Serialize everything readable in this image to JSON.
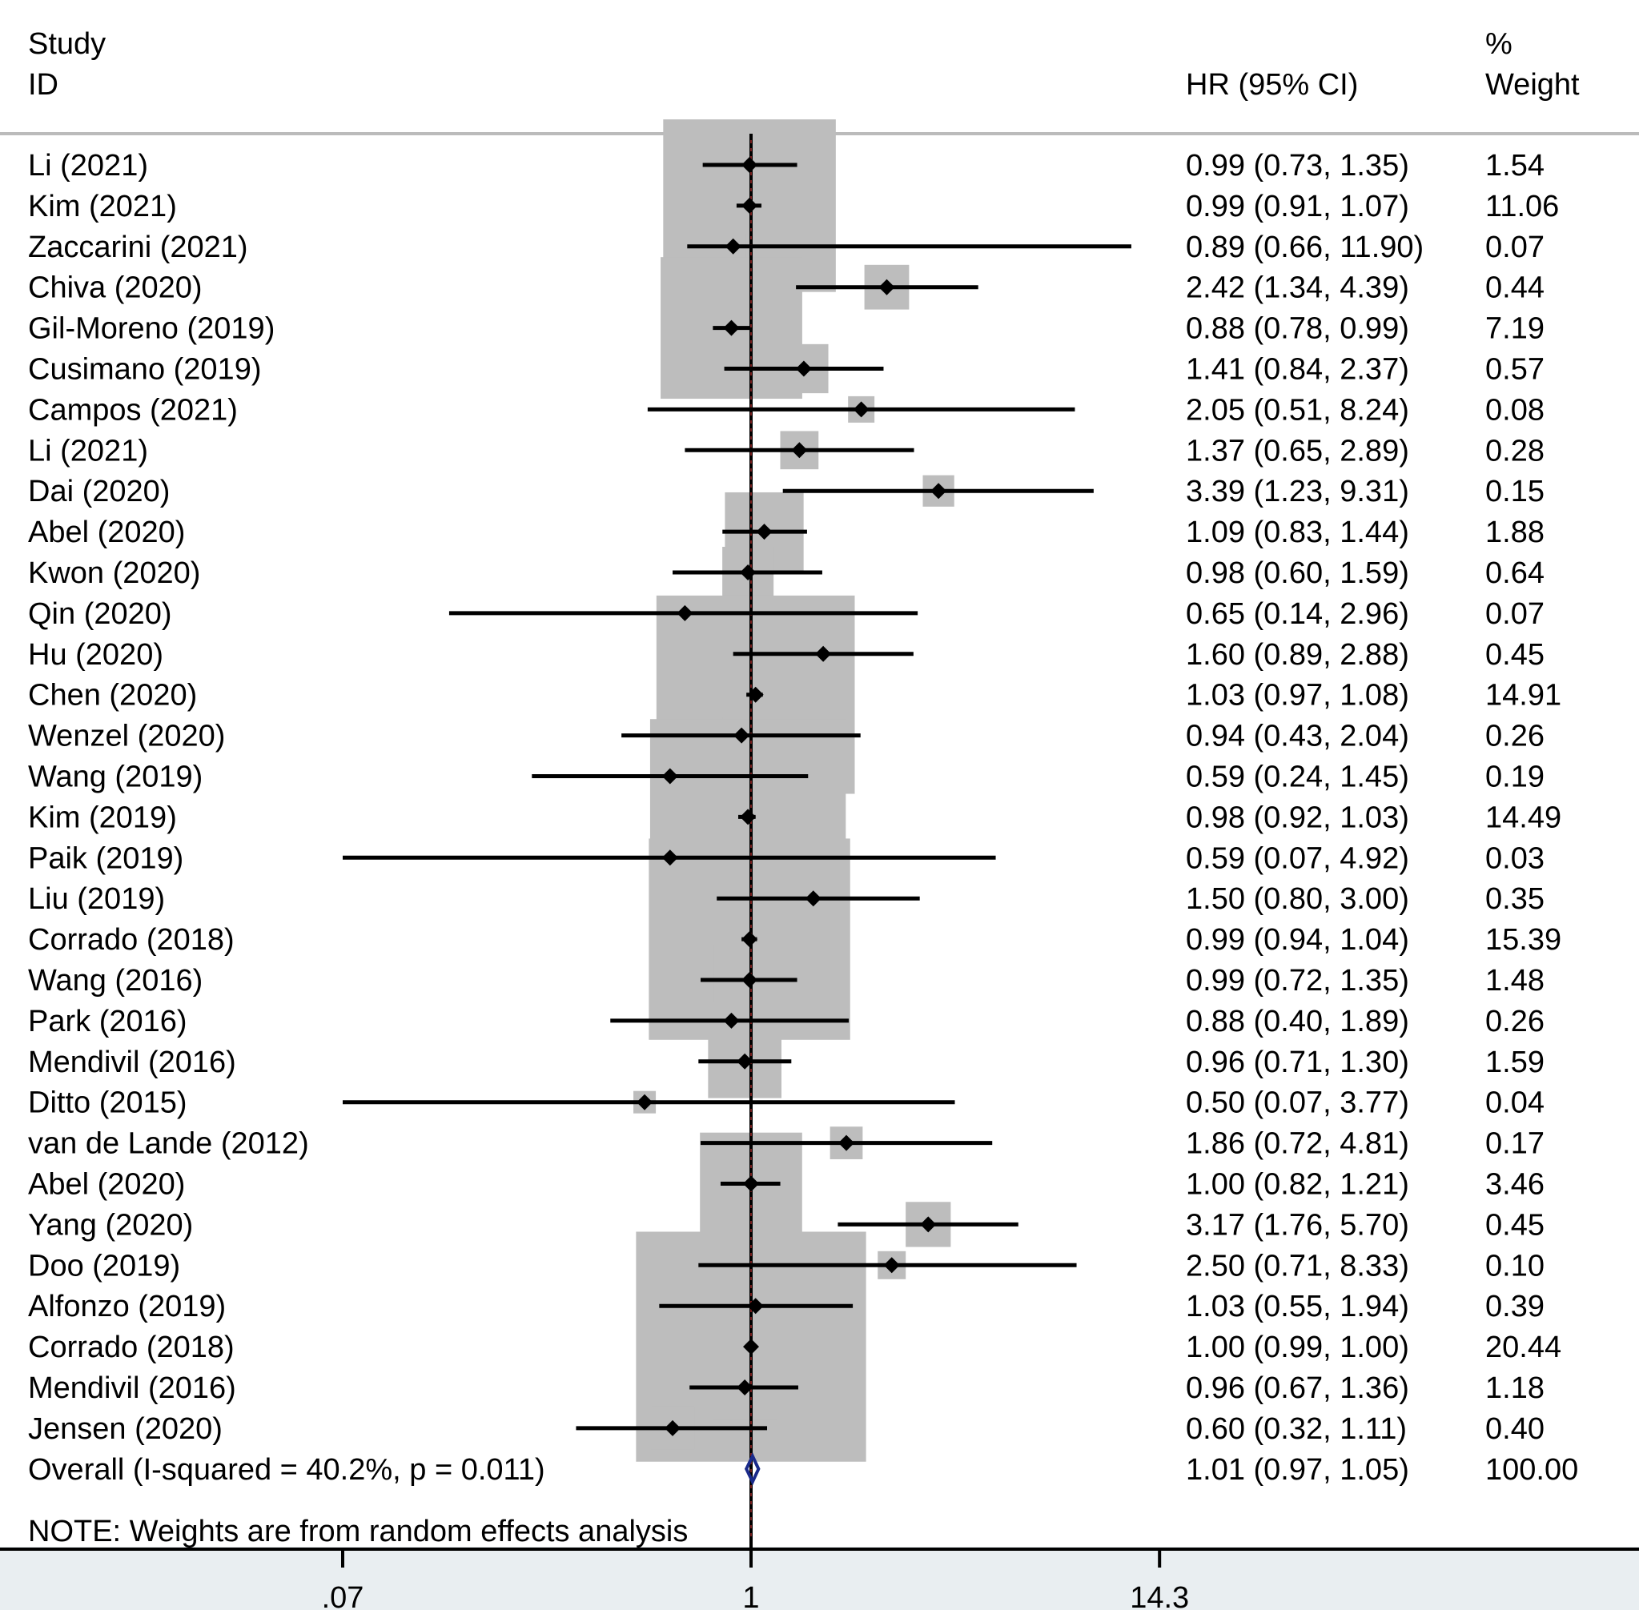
{
  "chart_data": {
    "type": "forest",
    "x_scale": "log",
    "reference_value": 1,
    "header": {
      "study_line1": "Study",
      "study_line2": "ID",
      "hr_label": "HR (95% CI)",
      "weight_line1": "%",
      "weight_line2": "Weight"
    },
    "studies": [
      {
        "id": "Li (2021)",
        "hr": 0.99,
        "lo": 0.73,
        "hi": 1.35,
        "ci_text": "0.99 (0.73, 1.35)",
        "weight": "1.54"
      },
      {
        "id": "Kim (2021)",
        "hr": 0.99,
        "lo": 0.91,
        "hi": 1.07,
        "ci_text": "0.99 (0.91, 1.07)",
        "weight": "11.06"
      },
      {
        "id": "Zaccarini (2021)",
        "hr": 0.89,
        "lo": 0.66,
        "hi": 11.9,
        "ci_text": "0.89 (0.66, 11.90)",
        "weight": "0.07"
      },
      {
        "id": "Chiva (2020)",
        "hr": 2.42,
        "lo": 1.34,
        "hi": 4.39,
        "ci_text": "2.42 (1.34, 4.39)",
        "weight": "0.44"
      },
      {
        "id": "Gil-Moreno (2019)",
        "hr": 0.88,
        "lo": 0.78,
        "hi": 0.99,
        "ci_text": "0.88 (0.78, 0.99)",
        "weight": "7.19"
      },
      {
        "id": "Cusimano (2019)",
        "hr": 1.41,
        "lo": 0.84,
        "hi": 2.37,
        "ci_text": "1.41 (0.84, 2.37)",
        "weight": "0.57"
      },
      {
        "id": "Campos (2021)",
        "hr": 2.05,
        "lo": 0.51,
        "hi": 8.24,
        "ci_text": "2.05 (0.51, 8.24)",
        "weight": "0.08"
      },
      {
        "id": "Li (2021)",
        "hr": 1.37,
        "lo": 0.65,
        "hi": 2.89,
        "ci_text": "1.37 (0.65, 2.89)",
        "weight": "0.28"
      },
      {
        "id": "Dai (2020)",
        "hr": 3.39,
        "lo": 1.23,
        "hi": 9.31,
        "ci_text": "3.39 (1.23, 9.31)",
        "weight": "0.15"
      },
      {
        "id": "Abel (2020)",
        "hr": 1.09,
        "lo": 0.83,
        "hi": 1.44,
        "ci_text": "1.09 (0.83, 1.44)",
        "weight": "1.88"
      },
      {
        "id": "Kwon (2020)",
        "hr": 0.98,
        "lo": 0.6,
        "hi": 1.59,
        "ci_text": "0.98 (0.60, 1.59)",
        "weight": "0.64"
      },
      {
        "id": "Qin (2020)",
        "hr": 0.65,
        "lo": 0.14,
        "hi": 2.96,
        "ci_text": "0.65 (0.14, 2.96)",
        "weight": "0.07"
      },
      {
        "id": "Hu (2020)",
        "hr": 1.6,
        "lo": 0.89,
        "hi": 2.88,
        "ci_text": "1.60 (0.89, 2.88)",
        "weight": "0.45"
      },
      {
        "id": "Chen (2020)",
        "hr": 1.03,
        "lo": 0.97,
        "hi": 1.08,
        "ci_text": "1.03 (0.97, 1.08)",
        "weight": "14.91"
      },
      {
        "id": "Wenzel (2020)",
        "hr": 0.94,
        "lo": 0.43,
        "hi": 2.04,
        "ci_text": "0.94 (0.43, 2.04)",
        "weight": "0.26"
      },
      {
        "id": "Wang (2019)",
        "hr": 0.59,
        "lo": 0.24,
        "hi": 1.45,
        "ci_text": "0.59 (0.24, 1.45)",
        "weight": "0.19"
      },
      {
        "id": "Kim (2019)",
        "hr": 0.98,
        "lo": 0.92,
        "hi": 1.03,
        "ci_text": "0.98 (0.92, 1.03)",
        "weight": "14.49"
      },
      {
        "id": "Paik (2019)",
        "hr": 0.59,
        "lo": 0.07,
        "hi": 4.92,
        "ci_text": "0.59 (0.07, 4.92)",
        "weight": "0.03"
      },
      {
        "id": "Liu (2019)",
        "hr": 1.5,
        "lo": 0.8,
        "hi": 3.0,
        "ci_text": "1.50 (0.80, 3.00)",
        "weight": "0.35"
      },
      {
        "id": "Corrado (2018)",
        "hr": 0.99,
        "lo": 0.94,
        "hi": 1.04,
        "ci_text": "0.99 (0.94, 1.04)",
        "weight": "15.39"
      },
      {
        "id": "Wang (2016)",
        "hr": 0.99,
        "lo": 0.72,
        "hi": 1.35,
        "ci_text": "0.99 (0.72, 1.35)",
        "weight": "1.48"
      },
      {
        "id": "Park (2016)",
        "hr": 0.88,
        "lo": 0.4,
        "hi": 1.89,
        "ci_text": "0.88 (0.40, 1.89)",
        "weight": "0.26"
      },
      {
        "id": "Mendivil (2016)",
        "hr": 0.96,
        "lo": 0.71,
        "hi": 1.3,
        "ci_text": "0.96 (0.71, 1.30)",
        "weight": "1.59"
      },
      {
        "id": "Ditto (2015)",
        "hr": 0.5,
        "lo": 0.07,
        "hi": 3.77,
        "ci_text": "0.50 (0.07, 3.77)",
        "weight": "0.04"
      },
      {
        "id": "van de Lande (2012)",
        "hr": 1.86,
        "lo": 0.72,
        "hi": 4.81,
        "ci_text": "1.86 (0.72, 4.81)",
        "weight": "0.17"
      },
      {
        "id": "Abel (2020)",
        "hr": 1.0,
        "lo": 0.82,
        "hi": 1.21,
        "ci_text": "1.00 (0.82, 1.21)",
        "weight": "3.46"
      },
      {
        "id": "Yang (2020)",
        "hr": 3.17,
        "lo": 1.76,
        "hi": 5.7,
        "ci_text": "3.17 (1.76, 5.70)",
        "weight": "0.45"
      },
      {
        "id": "Doo (2019)",
        "hr": 2.5,
        "lo": 0.71,
        "hi": 8.33,
        "ci_text": "2.50 (0.71, 8.33)",
        "weight": "0.10"
      },
      {
        "id": "Alfonzo (2019)",
        "hr": 1.03,
        "lo": 0.55,
        "hi": 1.94,
        "ci_text": "1.03 (0.55, 1.94)",
        "weight": "0.39"
      },
      {
        "id": "Corrado (2018)",
        "hr": 1.0,
        "lo": 0.99,
        "hi": 1.0,
        "ci_text": "1.00 (0.99, 1.00)",
        "weight": "20.44"
      },
      {
        "id": "Mendivil (2016)",
        "hr": 0.96,
        "lo": 0.67,
        "hi": 1.36,
        "ci_text": "0.96 (0.67, 1.36)",
        "weight": "1.18"
      },
      {
        "id": "Jensen (2020)",
        "hr": 0.6,
        "lo": 0.32,
        "hi": 1.11,
        "ci_text": "0.60 (0.32, 1.11)",
        "weight": "0.40"
      }
    ],
    "overall": {
      "label": "Overall  (I-squared = 40.2%, p = 0.011)",
      "hr": 1.01,
      "lo": 0.97,
      "hi": 1.05,
      "ci_text": "1.01 (0.97, 1.05)",
      "weight": "100.00"
    },
    "note": "NOTE: Weights are from random effects analysis",
    "x_ticks": [
      {
        "value": 0.07,
        "label": ".07"
      },
      {
        "value": 1,
        "label": "1"
      },
      {
        "value": 14.3,
        "label": "14.3"
      }
    ],
    "colors": {
      "box": "#bdbdbd",
      "line": "#000000",
      "overall_diamond": "#1a2a8a",
      "axis_band": "#e9eef1",
      "header_rule": "#bbbbbb",
      "ref_dash": "#7a1f1f"
    }
  }
}
